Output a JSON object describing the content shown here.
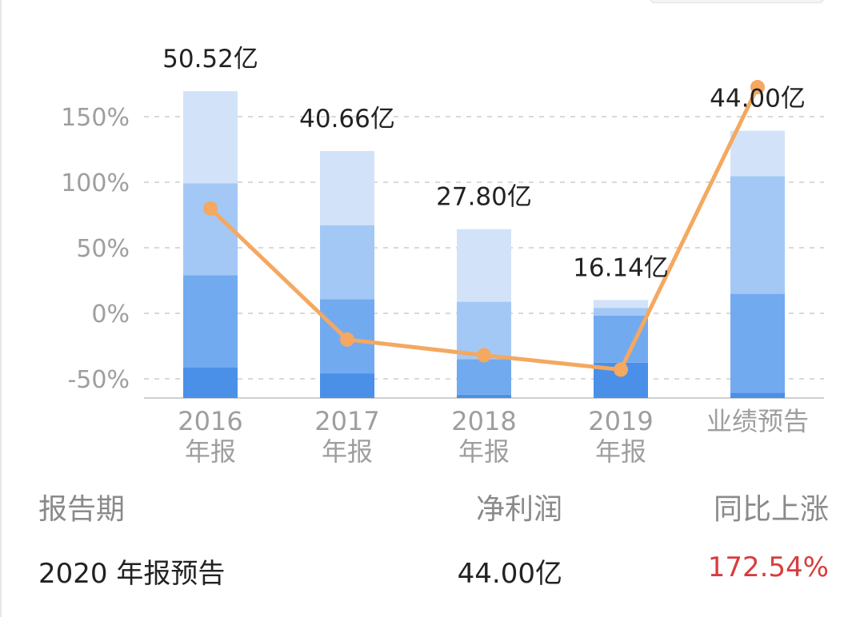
{
  "chart_data": {
    "type": "bar",
    "categories": [
      {
        "line1": "2016",
        "line2": "年报"
      },
      {
        "line1": "2017",
        "line2": "年报"
      },
      {
        "line1": "2018",
        "line2": "年报"
      },
      {
        "line1": "2019",
        "line2": "年报"
      },
      {
        "line1": "业绩预告",
        "line2": ""
      }
    ],
    "bar_labels": [
      "50.52亿",
      "40.66亿",
      "27.80亿",
      "16.14亿",
      "44.00亿"
    ],
    "bar_values": [
      50.52,
      40.66,
      27.8,
      16.14,
      44.0
    ],
    "bar_quarters_note_segments": [
      [
        0.1,
        0.3,
        0.3,
        0.3
      ],
      [
        0.1,
        0.3,
        0.3,
        0.3
      ],
      [
        0.02,
        0.21,
        0.34,
        0.43
      ],
      [
        0.36,
        0.48,
        0.08,
        0.08
      ],
      [
        0.02,
        0.37,
        0.44,
        0.17
      ]
    ],
    "line_series": {
      "values": [
        80,
        -20,
        -32,
        -43,
        172.54
      ]
    },
    "y_axis": {
      "ticks": [
        150,
        100,
        50,
        0,
        -50
      ],
      "tick_labels": [
        "150%",
        "100%",
        "50%",
        "0%",
        "-50%"
      ],
      "min": -65,
      "max": 180
    },
    "grid": true,
    "colors": {
      "seg1": "#4a90e8",
      "seg2": "#72aaf0",
      "seg3": "#a3c8f5",
      "seg4": "#d2e3f9",
      "line": "#f4a860",
      "grid": "#d9d9d9",
      "axis": "#cfcfcf"
    }
  },
  "table": {
    "header": {
      "period": "报告期",
      "profit": "净利润",
      "yoy": "同比上涨"
    },
    "row": {
      "period": "2020 年报预告",
      "profit": "44.00亿",
      "yoy": "172.54%"
    }
  }
}
